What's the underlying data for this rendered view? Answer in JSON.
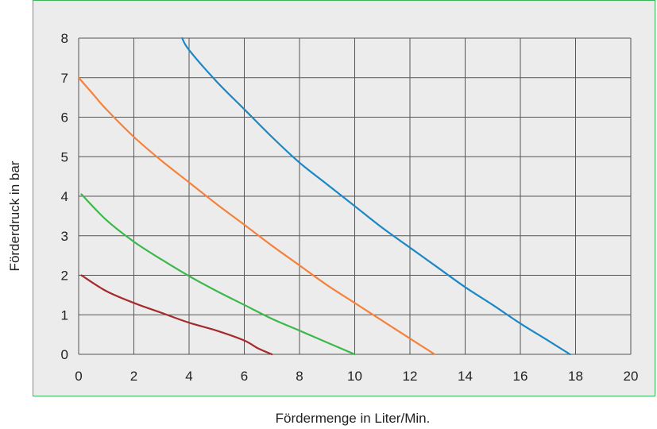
{
  "chart_data": {
    "type": "line",
    "title": "",
    "xlabel": "Fördermenge in Liter/Min.",
    "ylabel": "Förderdruck in bar",
    "xlim": [
      0,
      20
    ],
    "ylim": [
      0,
      8
    ],
    "x_ticks": [
      "0",
      "2",
      "4",
      "6",
      "8",
      "10",
      "12",
      "14",
      "16",
      "18",
      "20"
    ],
    "y_ticks": [
      "0",
      "1",
      "2",
      "3",
      "4",
      "5",
      "6",
      "7",
      "8"
    ],
    "grid": true,
    "legend": "none",
    "series": [
      {
        "color": "#a52a2a",
        "points": [
          [
            0.1,
            2.0
          ],
          [
            1.0,
            1.6
          ],
          [
            2.0,
            1.3
          ],
          [
            3.0,
            1.05
          ],
          [
            4.0,
            0.8
          ],
          [
            5.0,
            0.6
          ],
          [
            6.0,
            0.35
          ],
          [
            6.5,
            0.15
          ],
          [
            7.0,
            0.0
          ]
        ]
      },
      {
        "color": "#3cb84a",
        "points": [
          [
            0.1,
            4.05
          ],
          [
            1.0,
            3.4
          ],
          [
            2.0,
            2.85
          ],
          [
            3.0,
            2.4
          ],
          [
            4.0,
            1.98
          ],
          [
            5.0,
            1.6
          ],
          [
            6.0,
            1.25
          ],
          [
            7.0,
            0.9
          ],
          [
            8.0,
            0.6
          ],
          [
            9.0,
            0.3
          ],
          [
            10.0,
            0.0
          ]
        ]
      },
      {
        "color": "#f4823c",
        "points": [
          [
            0.0,
            7.0
          ],
          [
            0.5,
            6.6
          ],
          [
            1.0,
            6.2
          ],
          [
            2.0,
            5.5
          ],
          [
            3.0,
            4.9
          ],
          [
            4.0,
            4.35
          ],
          [
            5.0,
            3.8
          ],
          [
            6.0,
            3.28
          ],
          [
            7.0,
            2.75
          ],
          [
            8.0,
            2.25
          ],
          [
            9.0,
            1.75
          ],
          [
            10.0,
            1.3
          ],
          [
            11.0,
            0.85
          ],
          [
            12.0,
            0.4
          ],
          [
            12.9,
            0.0
          ]
        ]
      },
      {
        "color": "#1b87c4",
        "points": [
          [
            3.75,
            8.0
          ],
          [
            4.0,
            7.7
          ],
          [
            5.0,
            6.9
          ],
          [
            6.0,
            6.2
          ],
          [
            7.0,
            5.5
          ],
          [
            8.0,
            4.85
          ],
          [
            9.0,
            4.3
          ],
          [
            10.0,
            3.75
          ],
          [
            11.0,
            3.2
          ],
          [
            12.0,
            2.7
          ],
          [
            13.0,
            2.2
          ],
          [
            14.0,
            1.7
          ],
          [
            15.0,
            1.25
          ],
          [
            16.0,
            0.78
          ],
          [
            17.0,
            0.35
          ],
          [
            17.8,
            0.0
          ]
        ]
      }
    ]
  }
}
